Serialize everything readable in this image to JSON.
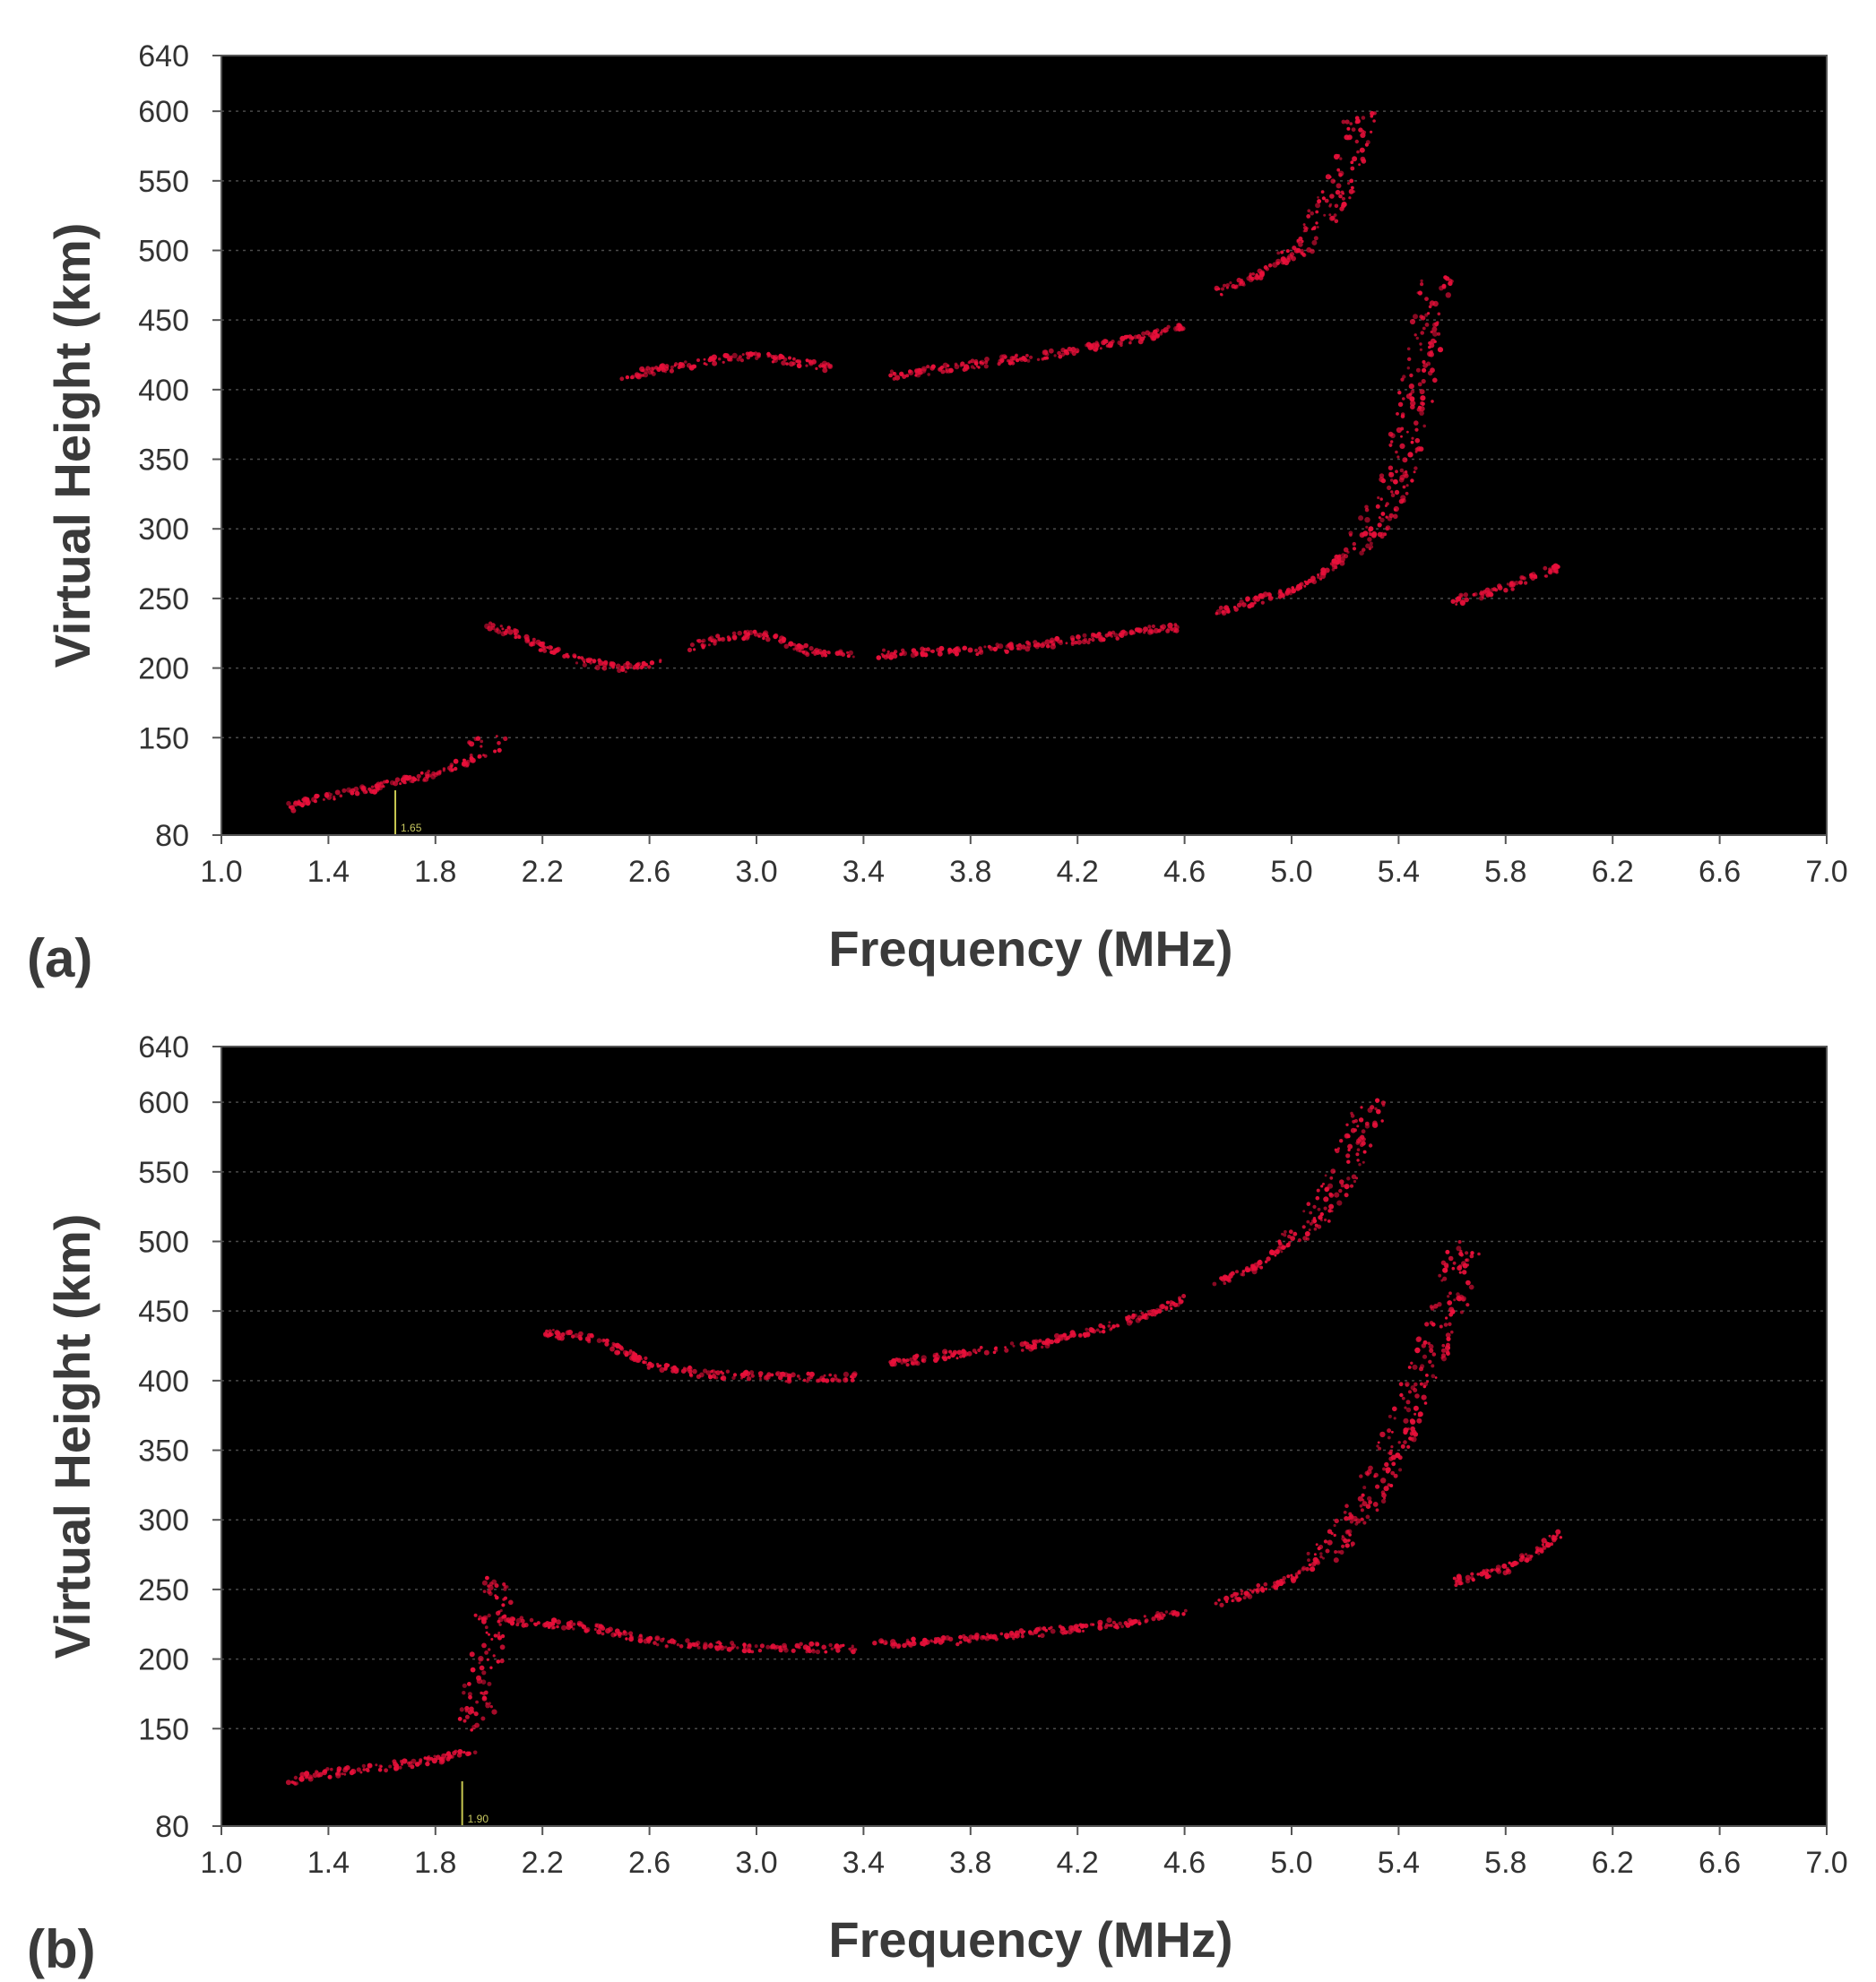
{
  "figure": {
    "background": "#ffffff",
    "plot_background": "#000000",
    "echo_color": "#e8103a",
    "marker_color": "#c8c850"
  },
  "chart_data": [
    {
      "type": "scatter",
      "panel_label": "(a)",
      "xlabel": "Frequency (MHz)",
      "ylabel": "Virtual Height (km)",
      "xlim": [
        1.0,
        7.0
      ],
      "ylim": [
        80,
        640
      ],
      "x_ticks": [
        "1.0",
        "1.4",
        "1.8",
        "2.2",
        "2.6",
        "3.0",
        "3.4",
        "3.8",
        "4.2",
        "4.6",
        "5.0",
        "5.4",
        "5.8",
        "6.2",
        "6.6",
        "7.0"
      ],
      "y_ticks": [
        "80",
        "150",
        "200",
        "250",
        "300",
        "350",
        "400",
        "450",
        "500",
        "550",
        "600",
        "640"
      ],
      "grid": true,
      "marker": {
        "x": 1.65,
        "label": "1.65"
      },
      "series": [
        {
          "x": [
            1.25,
            1.4,
            1.6,
            1.8,
            1.95,
            2.0
          ],
          "y": [
            100,
            108,
            115,
            125,
            135,
            150
          ]
        },
        {
          "x": [
            2.0,
            2.1,
            2.2,
            2.35,
            2.5,
            2.65
          ],
          "y": [
            230,
            225,
            215,
            205,
            200,
            205
          ]
        },
        {
          "x": [
            2.75,
            2.9,
            3.0,
            3.1,
            3.2,
            3.37
          ],
          "y": [
            215,
            222,
            225,
            220,
            212,
            210
          ]
        },
        {
          "x": [
            3.45,
            3.6,
            3.8,
            4.0,
            4.2,
            4.4,
            4.6
          ],
          "y": [
            210,
            211,
            212,
            216,
            220,
            225,
            230
          ]
        },
        {
          "x": [
            4.72,
            4.85,
            5.0,
            5.1,
            5.2,
            5.3,
            5.4,
            5.45,
            5.5,
            5.55
          ],
          "y": [
            240,
            248,
            255,
            265,
            280,
            300,
            335,
            380,
            430,
            480
          ]
        },
        {
          "x": [
            5.6,
            5.7,
            5.8,
            5.9,
            6.0
          ],
          "y": [
            248,
            252,
            258,
            265,
            272
          ]
        },
        {
          "x": [
            2.5,
            2.8,
            3.0,
            3.3
          ],
          "y": [
            410,
            420,
            425,
            415
          ]
        },
        {
          "x": [
            3.5,
            3.7,
            3.9,
            4.1,
            4.3,
            4.5,
            4.6
          ],
          "y": [
            410,
            415,
            420,
            425,
            432,
            440,
            445
          ]
        },
        {
          "x": [
            4.72,
            4.85,
            5.0,
            5.1,
            5.2,
            5.25
          ],
          "y": [
            470,
            480,
            495,
            520,
            550,
            600
          ]
        }
      ]
    },
    {
      "type": "scatter",
      "panel_label": "(b)",
      "xlabel": "Frequency (MHz)",
      "ylabel": "Virtual Height (km)",
      "xlim": [
        1.0,
        7.0
      ],
      "ylim": [
        80,
        640
      ],
      "x_ticks": [
        "1.0",
        "1.4",
        "1.8",
        "2.2",
        "2.6",
        "3.0",
        "3.4",
        "3.8",
        "4.2",
        "4.6",
        "5.0",
        "5.4",
        "5.8",
        "6.2",
        "6.6",
        "7.0"
      ],
      "y_ticks": [
        "80",
        "150",
        "200",
        "250",
        "300",
        "350",
        "400",
        "450",
        "500",
        "550",
        "600",
        "640"
      ],
      "grid": true,
      "marker": {
        "x": 1.9,
        "label": "1.90"
      },
      "series": [
        {
          "x": [
            1.25,
            1.4,
            1.6,
            1.8,
            1.95
          ],
          "y": [
            112,
            118,
            122,
            128,
            135
          ]
        },
        {
          "x": [
            1.95,
            2.0,
            2.05
          ],
          "y": [
            150,
            220,
            260
          ]
        },
        {
          "x": [
            2.05,
            2.2,
            2.4,
            2.6,
            2.8,
            3.0,
            3.2,
            3.37
          ],
          "y": [
            228,
            226,
            222,
            213,
            210,
            208,
            208,
            208
          ]
        },
        {
          "x": [
            3.45,
            3.6,
            3.8,
            4.0,
            4.2,
            4.4,
            4.6
          ],
          "y": [
            210,
            212,
            214,
            218,
            222,
            227,
            233
          ]
        },
        {
          "x": [
            4.72,
            4.85,
            5.0,
            5.1,
            5.2,
            5.3,
            5.4,
            5.5,
            5.6,
            5.65
          ],
          "y": [
            240,
            248,
            258,
            270,
            290,
            320,
            360,
            410,
            460,
            500
          ]
        },
        {
          "x": [
            5.6,
            5.7,
            5.8,
            5.9,
            6.0
          ],
          "y": [
            255,
            260,
            265,
            275,
            290
          ]
        },
        {
          "x": [
            2.2,
            2.4,
            2.6,
            2.8,
            3.0,
            3.2,
            3.37
          ],
          "y": [
            435,
            430,
            412,
            405,
            403,
            402,
            402
          ]
        },
        {
          "x": [
            3.5,
            3.7,
            3.9,
            4.1,
            4.3,
            4.5,
            4.6
          ],
          "y": [
            412,
            418,
            422,
            428,
            438,
            450,
            460
          ]
        },
        {
          "x": [
            4.72,
            4.85,
            5.0,
            5.1,
            5.2,
            5.3
          ],
          "y": [
            470,
            480,
            500,
            520,
            550,
            600
          ]
        }
      ]
    }
  ]
}
